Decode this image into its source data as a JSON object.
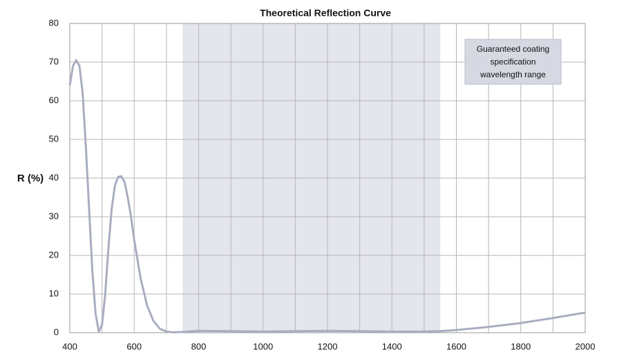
{
  "chart_data": {
    "type": "line",
    "title": "Theoretical Reflection Curve",
    "ylabel": "R (%)",
    "xlim": [
      400,
      2000
    ],
    "xticks": [
      400,
      600,
      800,
      1000,
      1200,
      1400,
      1600,
      1800,
      2000
    ],
    "xminor": [
      500,
      700,
      900,
      1100,
      1300,
      1500,
      1700,
      1900
    ],
    "ylim": [
      0,
      80
    ],
    "yticks": [
      0,
      10,
      20,
      30,
      40,
      50,
      60,
      70,
      80
    ],
    "grid": true,
    "shaded_range": [
      750,
      1550
    ],
    "shade_color": "#e5e6ed",
    "annotation": [
      "Guaranteed coating",
      "specification",
      "wavelength range"
    ],
    "series": [
      {
        "color": "#a9adc1",
        "x": [
          400,
          410,
          420,
          430,
          440,
          450,
          460,
          470,
          480,
          490,
          500,
          510,
          520,
          530,
          540,
          550,
          560,
          570,
          580,
          590,
          600,
          620,
          640,
          660,
          680,
          700,
          720,
          750,
          800,
          900,
          1000,
          1100,
          1200,
          1300,
          1400,
          1500,
          1550,
          1600,
          1700,
          1800,
          1900,
          2000
        ],
        "values": [
          64,
          69,
          70.5,
          69,
          62,
          48,
          32,
          16,
          5,
          0.3,
          2,
          10,
          22,
          32,
          38,
          40.3,
          40.5,
          39,
          35,
          30,
          24,
          14,
          7,
          3,
          1,
          0.3,
          0.1,
          0.2,
          0.5,
          0.4,
          0.3,
          0.4,
          0.5,
          0.4,
          0.3,
          0.3,
          0.4,
          0.7,
          1.5,
          2.5,
          3.8,
          5.2
        ]
      }
    ]
  }
}
